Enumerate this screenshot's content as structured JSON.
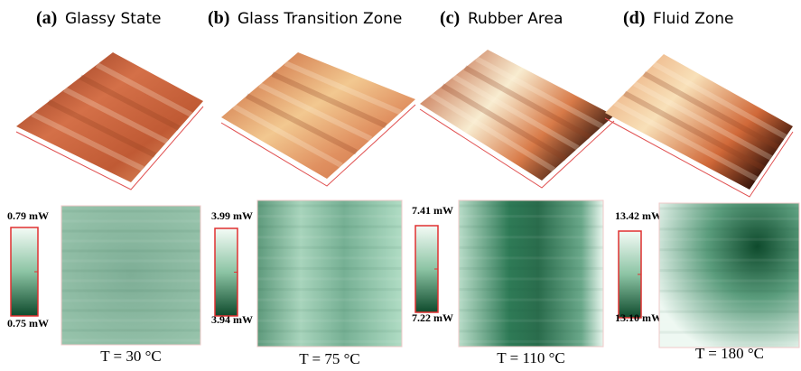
{
  "panels": [
    {
      "letter": "(a)",
      "title": "Glassy State",
      "colorbar_max": "0.79 mW",
      "colorbar_min": "0.75 mW",
      "temperature": "T = 30 °C"
    },
    {
      "letter": "(b)",
      "title": "Glass Transition Zone",
      "colorbar_max": "3.99 mW",
      "colorbar_min": "3.94 mW",
      "temperature": "T = 75 °C"
    },
    {
      "letter": "(c)",
      "title": "Rubber Area",
      "colorbar_max": "7.41 mW",
      "colorbar_min": "7.22 mW",
      "temperature": "T = 110 °C"
    },
    {
      "letter": "(d)",
      "title": "Fluid Zone",
      "colorbar_max": "13.42 mW",
      "colorbar_min": "13.10 mW",
      "temperature": "T = 180 °C"
    }
  ]
}
